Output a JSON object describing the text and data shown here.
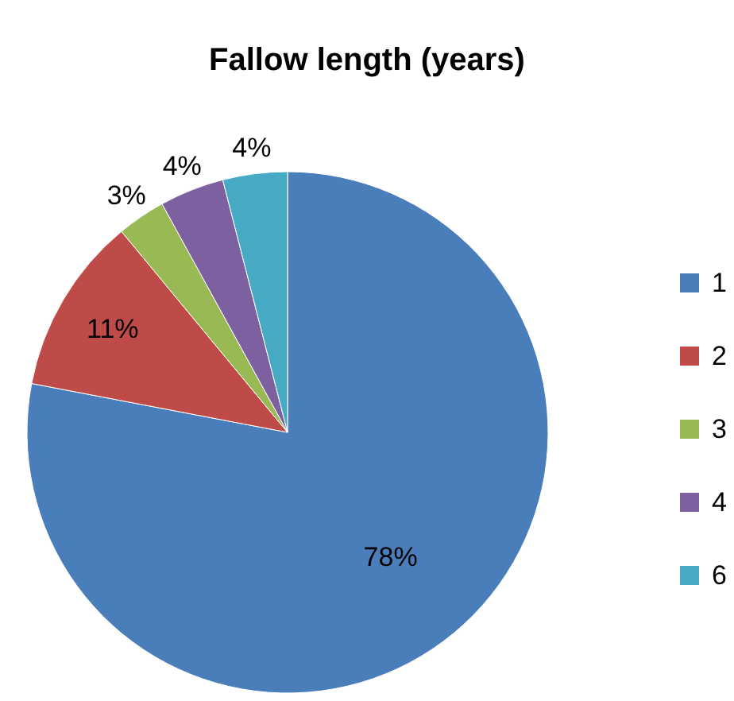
{
  "chart_data": {
    "type": "pie",
    "title": "Fallow length (years)",
    "categories": [
      "1",
      "2",
      "3",
      "4",
      "6"
    ],
    "values": [
      78,
      11,
      3,
      4,
      4
    ],
    "colors": [
      "#4a7ebb",
      "#be4b48",
      "#98b954",
      "#7d60a0",
      "#46aac5"
    ],
    "value_labels": [
      "78%",
      "11%",
      "3%",
      "4%",
      "4%"
    ],
    "legend": "right"
  }
}
